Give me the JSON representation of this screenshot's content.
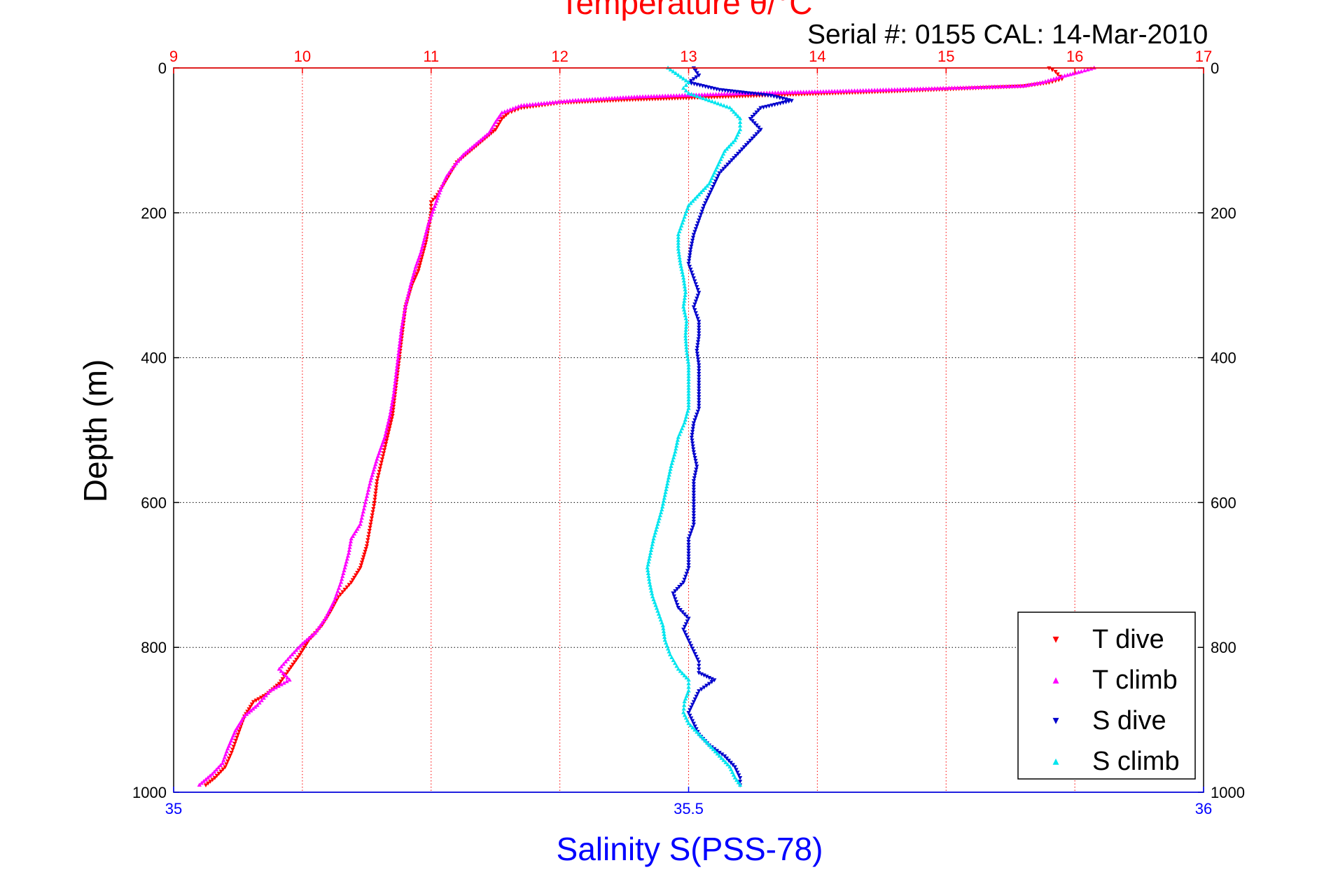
{
  "chart_data": {
    "type": "scatter",
    "title": "Temperature θ/°C",
    "subtitle": "Serial #: 0155  CAL: 14-Mar-2010",
    "xlabel": "Salinity S(PSS-78)",
    "ylabel": "Depth (m)",
    "top_axis": {
      "label": "Temperature θ/°C",
      "range": [
        9,
        17
      ],
      "ticks": [
        "9",
        "10",
        "11",
        "12",
        "13",
        "14",
        "15",
        "16",
        "17"
      ],
      "color": "#ff0000"
    },
    "bottom_axis": {
      "label": "Salinity S(PSS-78)",
      "range": [
        35,
        36
      ],
      "ticks": [
        "35",
        "35.5",
        "36"
      ],
      "color": "#0000ff"
    },
    "y_axis": {
      "range": [
        0,
        1000
      ],
      "reversed": true,
      "ticks": [
        "0",
        "200",
        "400",
        "600",
        "800",
        "1000"
      ]
    },
    "grid": true,
    "legend_position": "bottom-right",
    "series": [
      {
        "name": "T dive",
        "axis": "temperature",
        "color": "#ff0000",
        "marker": "triangle-down",
        "points": [
          [
            15.8,
            0
          ],
          [
            15.85,
            5
          ],
          [
            15.9,
            15
          ],
          [
            15.8,
            20
          ],
          [
            15.6,
            25
          ],
          [
            14.6,
            32
          ],
          [
            13.9,
            36
          ],
          [
            13.2,
            40
          ],
          [
            12.5,
            44
          ],
          [
            12.0,
            48
          ],
          [
            11.7,
            55
          ],
          [
            11.6,
            62
          ],
          [
            11.55,
            70
          ],
          [
            11.5,
            85
          ],
          [
            11.4,
            100
          ],
          [
            11.3,
            115
          ],
          [
            11.2,
            130
          ],
          [
            11.15,
            145
          ],
          [
            11.1,
            160
          ],
          [
            11.05,
            175
          ],
          [
            11.0,
            185
          ],
          [
            11.0,
            200
          ],
          [
            10.98,
            220
          ],
          [
            10.96,
            240
          ],
          [
            10.93,
            260
          ],
          [
            10.9,
            280
          ],
          [
            10.85,
            300
          ],
          [
            10.8,
            330
          ],
          [
            10.78,
            360
          ],
          [
            10.76,
            390
          ],
          [
            10.74,
            420
          ],
          [
            10.72,
            450
          ],
          [
            10.7,
            480
          ],
          [
            10.66,
            510
          ],
          [
            10.62,
            540
          ],
          [
            10.58,
            570
          ],
          [
            10.56,
            600
          ],
          [
            10.53,
            630
          ],
          [
            10.5,
            660
          ],
          [
            10.45,
            690
          ],
          [
            10.38,
            710
          ],
          [
            10.28,
            730
          ],
          [
            10.22,
            750
          ],
          [
            10.15,
            770
          ],
          [
            10.05,
            790
          ],
          [
            9.98,
            810
          ],
          [
            9.9,
            830
          ],
          [
            9.82,
            850
          ],
          [
            9.72,
            865
          ],
          [
            9.62,
            875
          ],
          [
            9.55,
            895
          ],
          [
            9.5,
            920
          ],
          [
            9.45,
            945
          ],
          [
            9.4,
            965
          ],
          [
            9.32,
            980
          ],
          [
            9.25,
            990
          ]
        ]
      },
      {
        "name": "T climb",
        "axis": "temperature",
        "color": "#ff00ff",
        "marker": "triangle-up",
        "points": [
          [
            16.15,
            0
          ],
          [
            16.05,
            5
          ],
          [
            15.9,
            12
          ],
          [
            15.75,
            20
          ],
          [
            15.6,
            25
          ],
          [
            15.0,
            28
          ],
          [
            14.2,
            32
          ],
          [
            13.3,
            36
          ],
          [
            12.6,
            40
          ],
          [
            12.1,
            45
          ],
          [
            11.7,
            52
          ],
          [
            11.55,
            62
          ],
          [
            11.5,
            75
          ],
          [
            11.45,
            90
          ],
          [
            11.35,
            105
          ],
          [
            11.25,
            120
          ],
          [
            11.18,
            135
          ],
          [
            11.12,
            150
          ],
          [
            11.08,
            165
          ],
          [
            11.05,
            180
          ],
          [
            11.02,
            195
          ],
          [
            10.98,
            215
          ],
          [
            10.95,
            235
          ],
          [
            10.92,
            255
          ],
          [
            10.88,
            275
          ],
          [
            10.84,
            300
          ],
          [
            10.8,
            330
          ],
          [
            10.77,
            360
          ],
          [
            10.75,
            390
          ],
          [
            10.73,
            420
          ],
          [
            10.71,
            450
          ],
          [
            10.68,
            480
          ],
          [
            10.64,
            510
          ],
          [
            10.58,
            540
          ],
          [
            10.53,
            570
          ],
          [
            10.49,
            600
          ],
          [
            10.45,
            630
          ],
          [
            10.38,
            650
          ],
          [
            10.36,
            670
          ],
          [
            10.33,
            690
          ],
          [
            10.3,
            710
          ],
          [
            10.25,
            735
          ],
          [
            10.18,
            760
          ],
          [
            10.1,
            780
          ],
          [
            10.0,
            795
          ],
          [
            9.92,
            810
          ],
          [
            9.82,
            830
          ],
          [
            9.9,
            845
          ],
          [
            9.75,
            860
          ],
          [
            9.65,
            880
          ],
          [
            9.55,
            895
          ],
          [
            9.48,
            915
          ],
          [
            9.42,
            940
          ],
          [
            9.38,
            960
          ],
          [
            9.3,
            975
          ],
          [
            9.2,
            990
          ]
        ]
      },
      {
        "name": "S dive",
        "axis": "salinity",
        "color": "#0000cc",
        "marker": "triangle-down",
        "points": [
          [
            35.505,
            0
          ],
          [
            35.51,
            10
          ],
          [
            35.5,
            20
          ],
          [
            35.53,
            30
          ],
          [
            35.58,
            38
          ],
          [
            35.6,
            45
          ],
          [
            35.57,
            55
          ],
          [
            35.56,
            70
          ],
          [
            35.57,
            85
          ],
          [
            35.56,
            100
          ],
          [
            35.55,
            115
          ],
          [
            35.54,
            130
          ],
          [
            35.53,
            145
          ],
          [
            35.525,
            160
          ],
          [
            35.52,
            175
          ],
          [
            35.515,
            190
          ],
          [
            35.51,
            210
          ],
          [
            35.505,
            230
          ],
          [
            35.502,
            250
          ],
          [
            35.5,
            270
          ],
          [
            35.505,
            290
          ],
          [
            35.51,
            310
          ],
          [
            35.505,
            330
          ],
          [
            35.51,
            350
          ],
          [
            35.51,
            370
          ],
          [
            35.508,
            390
          ],
          [
            35.51,
            410
          ],
          [
            35.51,
            430
          ],
          [
            35.51,
            450
          ],
          [
            35.51,
            470
          ],
          [
            35.505,
            490
          ],
          [
            35.503,
            510
          ],
          [
            35.505,
            530
          ],
          [
            35.508,
            550
          ],
          [
            35.505,
            570
          ],
          [
            35.505,
            590
          ],
          [
            35.505,
            610
          ],
          [
            35.505,
            630
          ],
          [
            35.5,
            650
          ],
          [
            35.5,
            670
          ],
          [
            35.5,
            690
          ],
          [
            35.495,
            710
          ],
          [
            35.485,
            725
          ],
          [
            35.49,
            745
          ],
          [
            35.5,
            760
          ],
          [
            35.495,
            775
          ],
          [
            35.5,
            790
          ],
          [
            35.505,
            805
          ],
          [
            35.51,
            820
          ],
          [
            35.51,
            835
          ],
          [
            35.525,
            845
          ],
          [
            35.51,
            860
          ],
          [
            35.505,
            875
          ],
          [
            35.5,
            890
          ],
          [
            35.505,
            905
          ],
          [
            35.51,
            920
          ],
          [
            35.52,
            935
          ],
          [
            35.535,
            950
          ],
          [
            35.545,
            965
          ],
          [
            35.55,
            980
          ],
          [
            35.55,
            990
          ]
        ]
      },
      {
        "name": "S climb",
        "axis": "salinity",
        "color": "#00e5ee",
        "marker": "triangle-up",
        "points": [
          [
            35.48,
            0
          ],
          [
            35.49,
            10
          ],
          [
            35.5,
            20
          ],
          [
            35.495,
            28
          ],
          [
            35.5,
            35
          ],
          [
            35.52,
            45
          ],
          [
            35.54,
            55
          ],
          [
            35.55,
            70
          ],
          [
            35.55,
            85
          ],
          [
            35.545,
            100
          ],
          [
            35.535,
            115
          ],
          [
            35.53,
            130
          ],
          [
            35.525,
            145
          ],
          [
            35.52,
            160
          ],
          [
            35.51,
            175
          ],
          [
            35.5,
            190
          ],
          [
            35.495,
            210
          ],
          [
            35.49,
            230
          ],
          [
            35.49,
            250
          ],
          [
            35.492,
            270
          ],
          [
            35.495,
            290
          ],
          [
            35.497,
            310
          ],
          [
            35.495,
            330
          ],
          [
            35.498,
            350
          ],
          [
            35.497,
            370
          ],
          [
            35.498,
            390
          ],
          [
            35.5,
            410
          ],
          [
            35.5,
            430
          ],
          [
            35.5,
            450
          ],
          [
            35.5,
            470
          ],
          [
            35.496,
            490
          ],
          [
            35.49,
            510
          ],
          [
            35.487,
            530
          ],
          [
            35.483,
            550
          ],
          [
            35.48,
            570
          ],
          [
            35.477,
            590
          ],
          [
            35.474,
            610
          ],
          [
            35.47,
            630
          ],
          [
            35.466,
            650
          ],
          [
            35.463,
            670
          ],
          [
            35.46,
            690
          ],
          [
            35.462,
            710
          ],
          [
            35.465,
            730
          ],
          [
            35.47,
            750
          ],
          [
            35.475,
            770
          ],
          [
            35.477,
            790
          ],
          [
            35.482,
            810
          ],
          [
            35.49,
            830
          ],
          [
            35.5,
            845
          ],
          [
            35.5,
            860
          ],
          [
            35.496,
            875
          ],
          [
            35.495,
            890
          ],
          [
            35.5,
            905
          ],
          [
            35.51,
            920
          ],
          [
            35.52,
            935
          ],
          [
            35.53,
            950
          ],
          [
            35.54,
            965
          ],
          [
            35.545,
            980
          ],
          [
            35.55,
            990
          ]
        ]
      }
    ]
  },
  "legend": {
    "items": [
      {
        "label": "T dive",
        "color": "#ff0000",
        "marker": "▾"
      },
      {
        "label": "T climb",
        "color": "#ff00ff",
        "marker": "▴"
      },
      {
        "label": "S dive",
        "color": "#0000cc",
        "marker": "▾"
      },
      {
        "label": "S climb",
        "color": "#00e5ee",
        "marker": "▴"
      }
    ]
  }
}
